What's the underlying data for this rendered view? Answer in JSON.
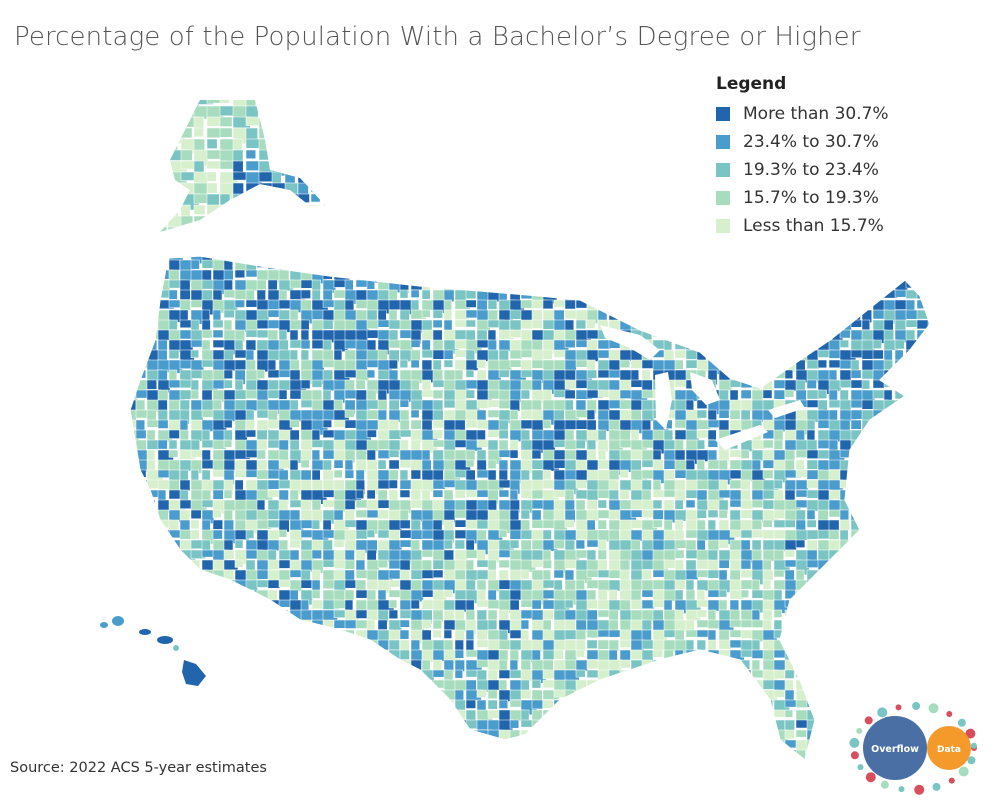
{
  "title": "Percentage of the Population With a Bachelor’s Degree or Higher",
  "legend": {
    "title": "Legend",
    "items": [
      {
        "label": "More than 30.7%",
        "color": "#2166ac"
      },
      {
        "label": "23.4% to 30.7%",
        "color": "#4a9ccc"
      },
      {
        "label": "19.3% to 23.4%",
        "color": "#7ac4c4"
      },
      {
        "label": "15.7% to 19.3%",
        "color": "#a8dcbe"
      },
      {
        "label": "Less than 15.7%",
        "color": "#d6efcd"
      }
    ]
  },
  "source": "Source: 2022 ACS 5-year estimates",
  "logo": {
    "left_text": "Overflow",
    "right_text": "Data",
    "left_color": "#4a6fa5",
    "right_color": "#f39a2b"
  },
  "map": {
    "regions": [
      "contiguous-us",
      "alaska",
      "hawaii"
    ]
  }
}
